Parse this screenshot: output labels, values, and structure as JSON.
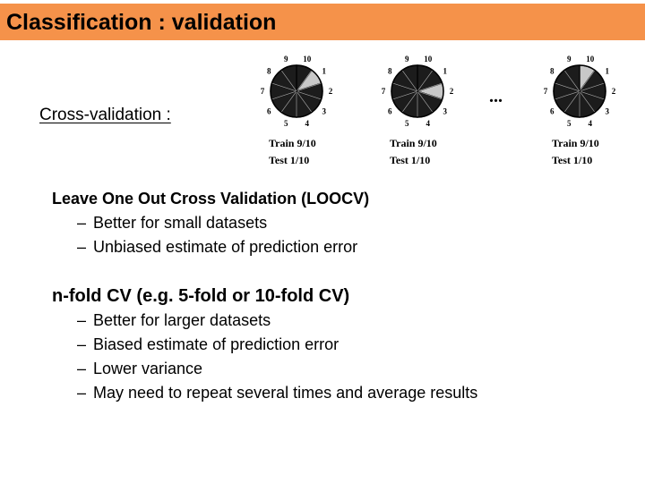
{
  "title": "Classification : validation",
  "colors": {
    "title_bar": "#f5924a",
    "wheel_fill": "#1c1c1c",
    "test_segment": "#c8c8c8"
  },
  "cross_validation_label": "Cross-validation :",
  "diagram": {
    "wheel_numbers": [
      "10",
      "1",
      "2",
      "3",
      "4",
      "5",
      "6",
      "7",
      "8",
      "9"
    ],
    "wheels": [
      {
        "caption_train": "Train 9/10",
        "caption_test": "Test 1/10",
        "test_segment_number": "1"
      },
      {
        "caption_train": "Train 9/10",
        "caption_test": "Test 1/10",
        "test_segment_number": "2"
      },
      {
        "caption_train": "Train 9/10",
        "caption_test": "Test 1/10",
        "test_segment_number": "10"
      }
    ],
    "ellipsis": "..."
  },
  "loocv": {
    "heading": "Leave One Out Cross Validation (LOOCV)",
    "items": [
      "Better for small datasets",
      "Unbiased estimate of prediction error"
    ]
  },
  "nfold": {
    "heading": "n-fold CV (e.g. 5-fold or 10-fold CV)",
    "items": [
      "Better for larger datasets",
      "Biased estimate of prediction error",
      "Lower variance",
      "May need to repeat several times and average results"
    ]
  },
  "dash": "–"
}
